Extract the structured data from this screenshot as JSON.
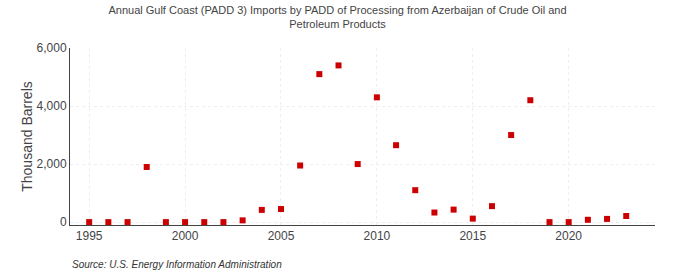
{
  "chart_data": {
    "type": "scatter",
    "title": "Annual Gulf Coast (PADD 3) Imports by PADD of Processing from Azerbaijan of Crude Oil and\nPetroleum Products",
    "ylabel": "Thousand Barrels",
    "annotations": [
      "Source: U.S. Energy Information Administration"
    ],
    "x": [
      1995,
      1996,
      1997,
      1998,
      1999,
      2000,
      2001,
      2002,
      2003,
      2004,
      2005,
      2006,
      2007,
      2008,
      2009,
      2010,
      2011,
      2012,
      2013,
      2014,
      2015,
      2016,
      2017,
      2018,
      2019,
      2020,
      2021,
      2022,
      2023
    ],
    "values": [
      0,
      0,
      0,
      1900,
      0,
      0,
      0,
      0,
      60,
      420,
      450,
      1950,
      5100,
      5400,
      2000,
      4300,
      2650,
      1100,
      330,
      430,
      120,
      550,
      3000,
      4200,
      0,
      0,
      80,
      110,
      210
    ],
    "color": "#cc0000",
    "marker": "square",
    "xlim": [
      1994,
      2024.5
    ],
    "ylim": [
      -100,
      6000
    ],
    "xticks": [
      1995,
      2000,
      2005,
      2010,
      2015,
      2020
    ],
    "yticks": [
      0,
      {
        "value": 2000,
        "label": "2,000"
      },
      {
        "value": 4000,
        "label": "4,000"
      },
      {
        "value": 6000,
        "label": "6,000"
      }
    ],
    "grid": true
  }
}
